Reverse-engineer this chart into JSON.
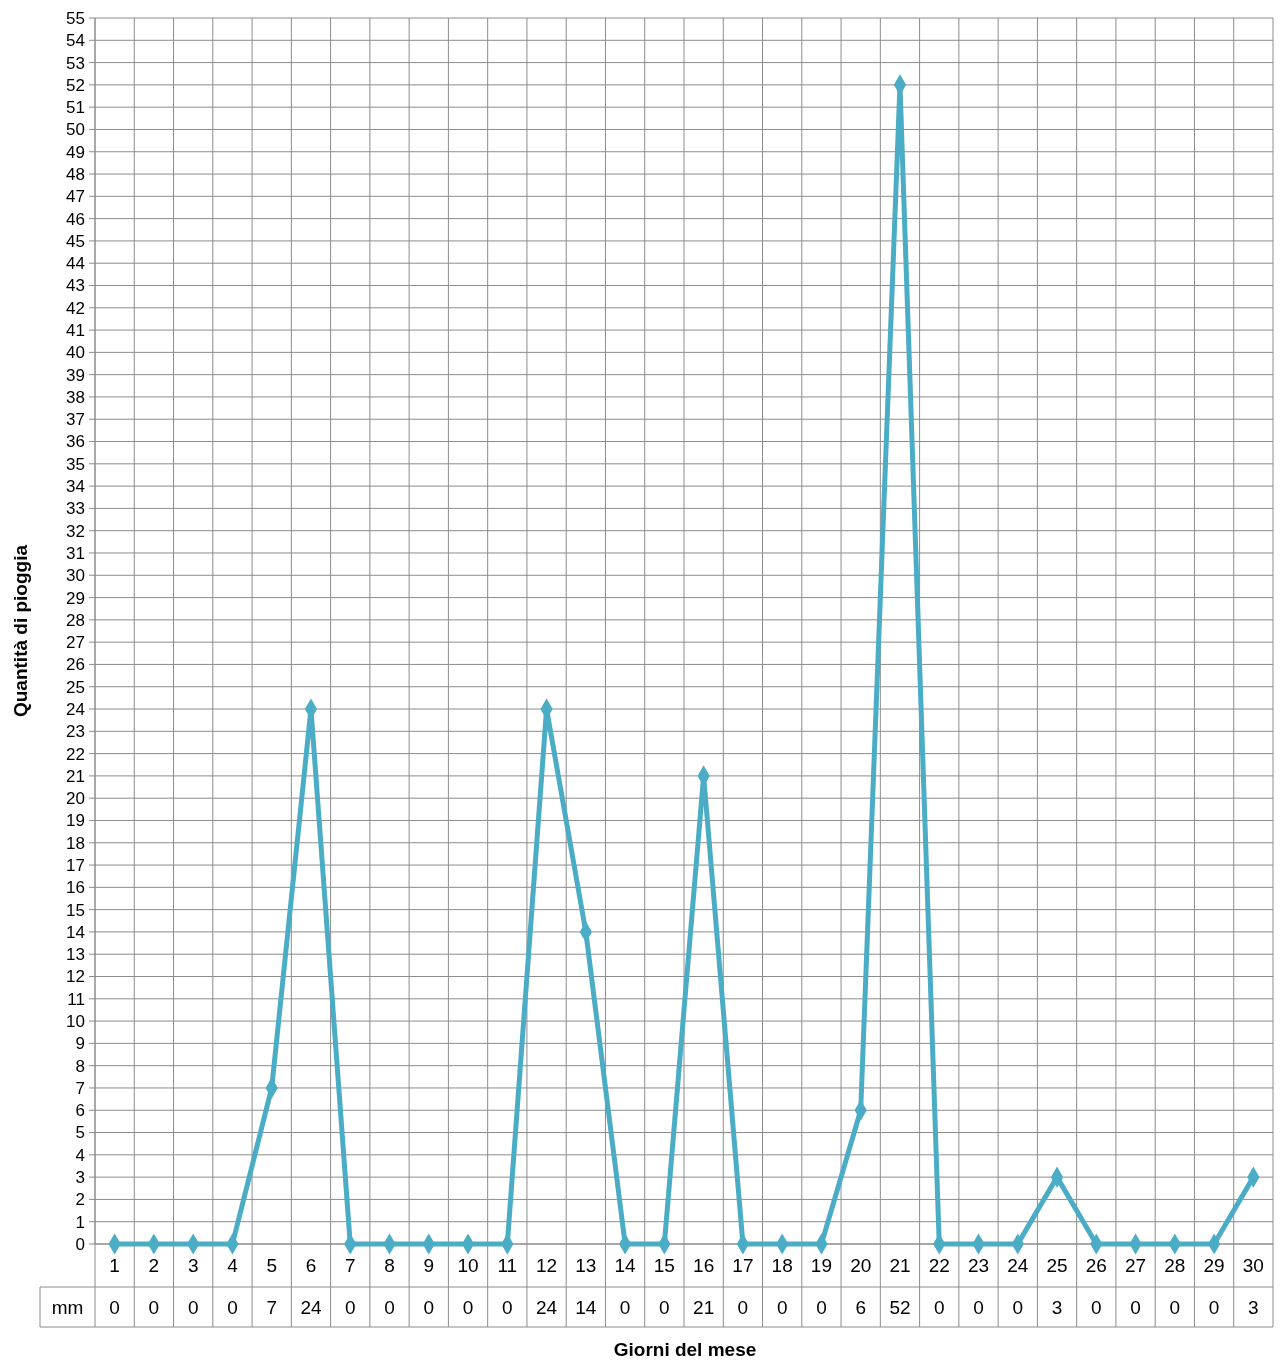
{
  "chart_data": {
    "type": "line",
    "xlabel": "Giorni del mese",
    "ylabel": "Quantità di pioggia",
    "categories": [
      "1",
      "2",
      "3",
      "4",
      "5",
      "6",
      "7",
      "8",
      "9",
      "10",
      "11",
      "12",
      "13",
      "14",
      "15",
      "16",
      "17",
      "18",
      "19",
      "20",
      "21",
      "22",
      "23",
      "24",
      "25",
      "26",
      "27",
      "28",
      "29",
      "30"
    ],
    "series": [
      {
        "name": "mm",
        "color": "#4bacc6",
        "values": [
          0,
          0,
          0,
          0,
          7,
          24,
          0,
          0,
          0,
          0,
          0,
          24,
          14,
          0,
          0,
          21,
          0,
          0,
          0,
          6,
          52,
          0,
          0,
          0,
          3,
          0,
          0,
          0,
          0,
          3
        ]
      }
    ],
    "ylim": [
      0,
      55
    ],
    "yticks": [
      0,
      1,
      2,
      3,
      4,
      5,
      6,
      7,
      8,
      9,
      10,
      11,
      12,
      13,
      14,
      15,
      16,
      17,
      18,
      19,
      20,
      21,
      22,
      23,
      24,
      25,
      26,
      27,
      28,
      29,
      30,
      31,
      32,
      33,
      34,
      35,
      36,
      37,
      38,
      39,
      40,
      41,
      42,
      43,
      44,
      45,
      46,
      47,
      48,
      49,
      50,
      51,
      52,
      53,
      54,
      55
    ],
    "grid": true,
    "marker": "diamond",
    "line_style": "solid",
    "data_labels": true
  }
}
